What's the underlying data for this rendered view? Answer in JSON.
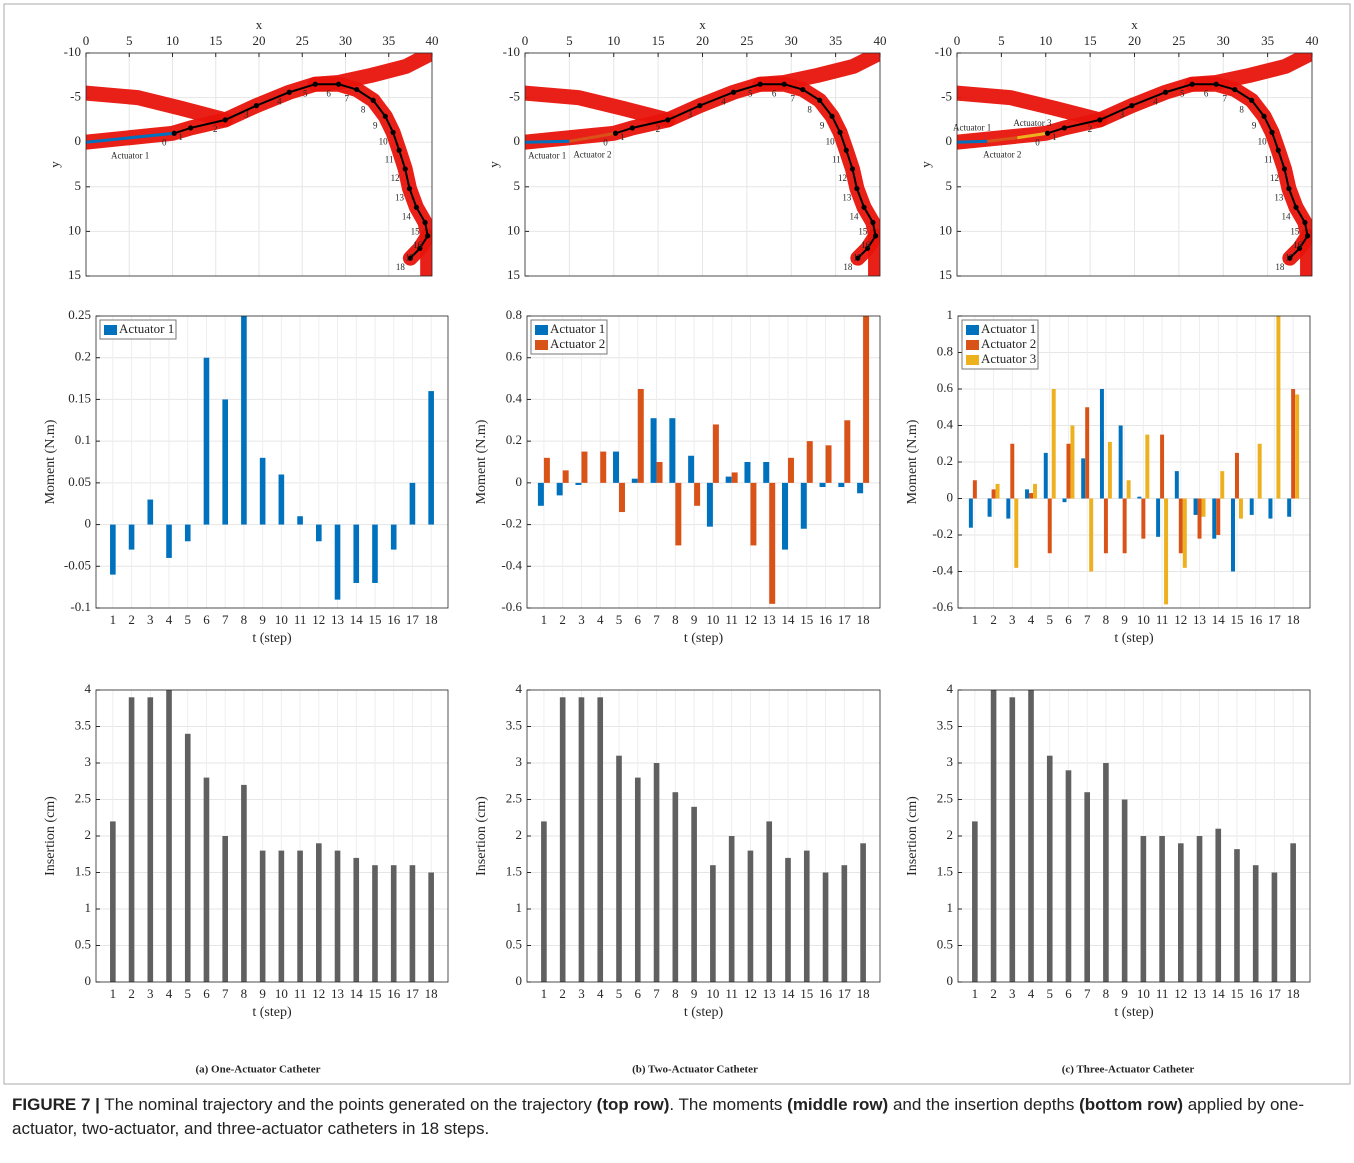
{
  "chart_data": [
    {
      "type": "trajectory",
      "xlabel": "x",
      "ylabel": "y",
      "xlim": [
        0,
        40
      ],
      "xticks": [
        0,
        5,
        10,
        15,
        20,
        25,
        30,
        35,
        40
      ],
      "ylim": [
        -10,
        15
      ],
      "yticks": [
        -10,
        -5,
        0,
        5,
        10,
        15
      ],
      "y_reversed": true,
      "grid": true,
      "vessel": {
        "color": "#e8140c",
        "paths": [
          {
            "x": [
              0,
              5,
              10,
              12.1,
              16.1,
              19.7,
              23.5,
              26.5,
              29.2,
              31.3,
              33.2,
              34.6,
              35.5,
              36.2,
              36.9,
              37.4,
              38.2,
              39.2,
              39.5,
              38.6,
              37.5
            ],
            "y": [
              0,
              -0.5,
              -1,
              -1.6,
              -2.5,
              -4.1,
              -5.6,
              -6.5,
              -6.5,
              -5.9,
              -4.7,
              -2.9,
              -1.1,
              0.9,
              3,
              5.2,
              7.3,
              9,
              10.5,
              11.9,
              13
            ]
          },
          {
            "x": [
              0,
              6,
              11,
              16.1
            ],
            "y": [
              -5.5,
              -5,
              -3.8,
              -2.5
            ]
          },
          {
            "x": [
              26.5,
              29.2,
              33,
              37,
              40
            ],
            "y": [
              -6.5,
              -6.7,
              -7.5,
              -8.5,
              -10
            ]
          },
          {
            "x": [
              39.5,
              39.5
            ],
            "y": [
              10.5,
              15
            ]
          }
        ]
      },
      "trajectory": {
        "color": "#000000",
        "labels": [
          0,
          1,
          2,
          3,
          4,
          5,
          6,
          7,
          8,
          9,
          10,
          11,
          12,
          13,
          14,
          15,
          16,
          17,
          18
        ],
        "x": [
          10.2,
          12.1,
          16.1,
          19.7,
          23.5,
          26.5,
          29.2,
          31.3,
          33.2,
          34.6,
          35.5,
          36.2,
          36.9,
          37.4,
          38.2,
          39.2,
          39.5,
          38.6,
          37.5
        ],
        "y": [
          -1,
          -1.6,
          -2.5,
          -4.1,
          -5.6,
          -6.5,
          -6.5,
          -5.9,
          -4.7,
          -2.9,
          -1.1,
          0.9,
          3,
          5.2,
          7.3,
          9,
          10.5,
          11.9,
          13
        ]
      },
      "series": [
        {
          "name": "Actuator 1",
          "color": "#0072bd",
          "x": [
            0,
            10.2
          ],
          "y": [
            0,
            -1
          ]
        }
      ]
    },
    {
      "type": "trajectory",
      "xlabel": "x",
      "ylabel": "y",
      "xlim": [
        0,
        40
      ],
      "xticks": [
        0,
        5,
        10,
        15,
        20,
        25,
        30,
        35,
        40
      ],
      "ylim": [
        -10,
        15
      ],
      "yticks": [
        -10,
        -5,
        0,
        5,
        10,
        15
      ],
      "y_reversed": true,
      "grid": true,
      "vessel": {
        "color": "#e8140c",
        "paths": [
          {
            "x": [
              0,
              5,
              10,
              12.1,
              16.1,
              19.7,
              23.5,
              26.5,
              29.2,
              31.3,
              33.2,
              34.6,
              35.5,
              36.2,
              36.9,
              37.4,
              38.2,
              39.2,
              39.5,
              38.6,
              37.5
            ],
            "y": [
              0,
              -0.5,
              -1,
              -1.6,
              -2.5,
              -4.1,
              -5.6,
              -6.5,
              -6.5,
              -5.9,
              -4.7,
              -2.9,
              -1.1,
              0.9,
              3,
              5.2,
              7.3,
              9,
              10.5,
              11.9,
              13
            ]
          },
          {
            "x": [
              0,
              6,
              11,
              16.1
            ],
            "y": [
              -5.5,
              -5,
              -3.8,
              -2.5
            ]
          },
          {
            "x": [
              26.5,
              29.2,
              33,
              37,
              40
            ],
            "y": [
              -6.5,
              -6.7,
              -7.5,
              -8.5,
              -10
            ]
          },
          {
            "x": [
              39.5,
              39.5
            ],
            "y": [
              10.5,
              15
            ]
          }
        ]
      },
      "trajectory": {
        "color": "#000000",
        "labels": [
          0,
          1,
          2,
          3,
          4,
          5,
          6,
          7,
          8,
          9,
          10,
          11,
          12,
          13,
          14,
          15,
          16,
          17,
          18
        ],
        "x": [
          10.2,
          12.1,
          16.1,
          19.7,
          23.5,
          26.5,
          29.2,
          31.3,
          33.2,
          34.6,
          35.5,
          36.2,
          36.9,
          37.4,
          38.2,
          39.2,
          39.5,
          38.6,
          37.5
        ],
        "y": [
          -1,
          -1.6,
          -2.5,
          -4.1,
          -5.6,
          -6.5,
          -6.5,
          -5.9,
          -4.7,
          -2.9,
          -1.1,
          0.9,
          3,
          5.2,
          7.3,
          9,
          10.5,
          11.9,
          13
        ]
      },
      "series": [
        {
          "name": "Actuator 1",
          "color": "#0072bd",
          "x": [
            0,
            5
          ],
          "y": [
            0,
            -0.1
          ]
        },
        {
          "name": "Actuator 2",
          "color": "#d95319",
          "x": [
            5,
            10.2
          ],
          "y": [
            -0.1,
            -1
          ]
        }
      ]
    },
    {
      "type": "trajectory",
      "xlabel": "x",
      "ylabel": "y",
      "xlim": [
        0,
        40
      ],
      "xticks": [
        0,
        5,
        10,
        15,
        20,
        25,
        30,
        35,
        40
      ],
      "ylim": [
        -10,
        15
      ],
      "yticks": [
        -10,
        -5,
        0,
        5,
        10,
        15
      ],
      "y_reversed": true,
      "grid": true,
      "vessel": {
        "color": "#e8140c",
        "paths": [
          {
            "x": [
              0,
              5,
              10,
              12.1,
              16.1,
              19.7,
              23.5,
              26.5,
              29.2,
              31.3,
              33.2,
              34.6,
              35.5,
              36.2,
              36.9,
              37.4,
              38.2,
              39.2,
              39.5,
              38.6,
              37.5
            ],
            "y": [
              0,
              -0.5,
              -1,
              -1.6,
              -2.5,
              -4.1,
              -5.6,
              -6.5,
              -6.5,
              -5.9,
              -4.7,
              -2.9,
              -1.1,
              0.9,
              3,
              5.2,
              7.3,
              9,
              10.5,
              11.9,
              13
            ]
          },
          {
            "x": [
              0,
              6,
              11,
              16.1
            ],
            "y": [
              -5.5,
              -5,
              -3.8,
              -2.5
            ]
          },
          {
            "x": [
              26.5,
              29.2,
              33,
              37,
              40
            ],
            "y": [
              -6.5,
              -6.7,
              -7.5,
              -8.5,
              -10
            ]
          },
          {
            "x": [
              39.5,
              39.5
            ],
            "y": [
              10.5,
              15
            ]
          }
        ]
      },
      "trajectory": {
        "color": "#000000",
        "labels": [
          0,
          1,
          2,
          3,
          4,
          5,
          6,
          7,
          8,
          9,
          10,
          11,
          12,
          13,
          14,
          15,
          16,
          17,
          18
        ],
        "x": [
          10.2,
          12.1,
          16.1,
          19.7,
          23.5,
          26.5,
          29.2,
          31.3,
          33.2,
          34.6,
          35.5,
          36.2,
          36.9,
          37.4,
          38.2,
          39.2,
          39.5,
          38.6,
          37.5
        ],
        "y": [
          -1,
          -1.6,
          -2.5,
          -4.1,
          -5.6,
          -6.5,
          -6.5,
          -5.9,
          -4.7,
          -2.9,
          -1.1,
          0.9,
          3,
          5.2,
          7.3,
          9,
          10.5,
          11.9,
          13
        ]
      },
      "series": [
        {
          "name": "Actuator 1",
          "color": "#0072bd",
          "x": [
            0,
            3.4
          ],
          "y": [
            0,
            -0.1
          ]
        },
        {
          "name": "Actuator 2",
          "color": "#d95319",
          "x": [
            3.4,
            6.8
          ],
          "y": [
            -0.1,
            -0.5
          ]
        },
        {
          "name": "Actuator 3",
          "color": "#edb120",
          "x": [
            6.8,
            10.2
          ],
          "y": [
            -0.5,
            -1
          ]
        }
      ]
    },
    {
      "type": "bar",
      "xlabel": "t (step)",
      "ylabel": "Moment (N.m)",
      "legend": "upper-left",
      "grid": true,
      "categories": [
        1,
        2,
        3,
        4,
        5,
        6,
        7,
        8,
        9,
        10,
        11,
        12,
        13,
        14,
        15,
        16,
        17,
        18
      ],
      "ylim": [
        -0.1,
        0.25
      ],
      "yticks": [
        -0.1,
        -0.05,
        0,
        0.05,
        0.1,
        0.15,
        0.2,
        0.25
      ],
      "series": [
        {
          "name": "Actuator 1",
          "color": "#0072bd",
          "values": [
            -0.06,
            -0.03,
            0.03,
            -0.04,
            -0.02,
            0.2,
            0.15,
            0.25,
            0.08,
            0.06,
            0.01,
            -0.02,
            -0.09,
            -0.07,
            -0.07,
            -0.03,
            0.05,
            0.16
          ]
        }
      ]
    },
    {
      "type": "bar",
      "xlabel": "t (step)",
      "ylabel": "Moment (N.m)",
      "legend": "upper-left",
      "grid": true,
      "categories": [
        1,
        2,
        3,
        4,
        5,
        6,
        7,
        8,
        9,
        10,
        11,
        12,
        13,
        14,
        15,
        16,
        17,
        18
      ],
      "ylim": [
        -0.6,
        0.8
      ],
      "yticks": [
        -0.6,
        -0.4,
        -0.2,
        0,
        0.2,
        0.4,
        0.6,
        0.8
      ],
      "series": [
        {
          "name": "Actuator 1",
          "color": "#0072bd",
          "values": [
            -0.11,
            -0.06,
            -0.01,
            0,
            0.15,
            0.02,
            0.31,
            0.31,
            0.13,
            -0.21,
            0.03,
            0.1,
            0.1,
            -0.32,
            -0.22,
            -0.02,
            -0.02,
            -0.05
          ]
        },
        {
          "name": "Actuator 2",
          "color": "#d95319",
          "values": [
            0.12,
            0.06,
            0.15,
            0.15,
            -0.14,
            0.45,
            0.1,
            -0.3,
            -0.11,
            0.28,
            0.05,
            -0.3,
            -0.58,
            0.12,
            0.2,
            0.18,
            0.3,
            0.8
          ]
        }
      ]
    },
    {
      "type": "bar",
      "xlabel": "t (step)",
      "ylabel": "Moment (N.m)",
      "legend": "upper-left",
      "grid": true,
      "categories": [
        1,
        2,
        3,
        4,
        5,
        6,
        7,
        8,
        9,
        10,
        11,
        12,
        13,
        14,
        15,
        16,
        17,
        18
      ],
      "ylim": [
        -0.6,
        1
      ],
      "yticks": [
        -0.6,
        -0.4,
        -0.2,
        0,
        0.2,
        0.4,
        0.6,
        0.8,
        1
      ],
      "series": [
        {
          "name": "Actuator 1",
          "color": "#0072bd",
          "values": [
            -0.16,
            -0.1,
            -0.11,
            0.05,
            0.25,
            -0.02,
            0.22,
            0.6,
            0.4,
            0.01,
            -0.21,
            0.15,
            -0.09,
            -0.22,
            -0.4,
            -0.09,
            -0.11,
            -0.1
          ]
        },
        {
          "name": "Actuator 2",
          "color": "#d95319",
          "values": [
            0.1,
            0.05,
            0.3,
            0.03,
            -0.3,
            0.3,
            0.5,
            -0.3,
            -0.3,
            -0.22,
            0.35,
            -0.3,
            -0.22,
            -0.2,
            0.25,
            0,
            0,
            0.6
          ]
        },
        {
          "name": "Actuator 3",
          "color": "#edb120",
          "values": [
            0,
            0.08,
            -0.38,
            0.08,
            0.6,
            0.4,
            -0.4,
            0.31,
            0.1,
            0.35,
            -0.58,
            -0.38,
            -0.1,
            0.15,
            -0.11,
            0.3,
            1,
            0.57
          ]
        }
      ]
    },
    {
      "type": "bar",
      "xlabel": "t (step)",
      "ylabel": "Insertion (cm)",
      "grid": true,
      "categories": [
        1,
        2,
        3,
        4,
        5,
        6,
        7,
        8,
        9,
        10,
        11,
        12,
        13,
        14,
        15,
        16,
        17,
        18
      ],
      "ylim": [
        0,
        4
      ],
      "yticks": [
        0,
        0.5,
        1,
        1.5,
        2,
        2.5,
        3,
        3.5,
        4
      ],
      "series": [
        {
          "color": "#606060",
          "values": [
            2.2,
            3.9,
            3.9,
            4,
            3.4,
            2.8,
            2,
            2.7,
            1.8,
            1.8,
            1.8,
            1.9,
            1.8,
            1.7,
            1.6,
            1.6,
            1.6,
            1.5
          ]
        }
      ]
    },
    {
      "type": "bar",
      "xlabel": "t (step)",
      "ylabel": "Insertion (cm)",
      "grid": true,
      "categories": [
        1,
        2,
        3,
        4,
        5,
        6,
        7,
        8,
        9,
        10,
        11,
        12,
        13,
        14,
        15,
        16,
        17,
        18
      ],
      "ylim": [
        0,
        4
      ],
      "yticks": [
        0,
        0.5,
        1,
        1.5,
        2,
        2.5,
        3,
        3.5,
        4
      ],
      "series": [
        {
          "color": "#606060",
          "values": [
            2.2,
            3.9,
            3.9,
            3.9,
            3.1,
            2.8,
            3,
            2.6,
            2.4,
            1.6,
            2,
            1.8,
            2.2,
            1.7,
            1.8,
            1.5,
            1.6,
            1.9
          ]
        }
      ]
    },
    {
      "type": "bar",
      "xlabel": "t (step)",
      "ylabel": "Insertion (cm)",
      "grid": true,
      "categories": [
        1,
        2,
        3,
        4,
        5,
        6,
        7,
        8,
        9,
        10,
        11,
        12,
        13,
        14,
        15,
        16,
        17,
        18
      ],
      "ylim": [
        0,
        4
      ],
      "yticks": [
        0,
        0.5,
        1,
        1.5,
        2,
        2.5,
        3,
        3.5,
        4
      ],
      "series": [
        {
          "color": "#606060",
          "values": [
            2.2,
            4,
            3.9,
            4,
            3.1,
            2.9,
            2.6,
            3,
            2.5,
            2,
            2,
            1.9,
            2,
            2.1,
            1.82,
            1.6,
            1.5,
            1.9
          ]
        }
      ]
    }
  ],
  "figure": {
    "panel_labels": [
      "(a) One-Actuator Catheter",
      "(b) Two-Actuator Catheter",
      "(c) Three-Actuator Catheter"
    ],
    "caption": [
      {
        "text": "FIGURE 7 |",
        "bold": true
      },
      {
        "text": " The nominal trajectory and the points generated on the trajectory ",
        "bold": false
      },
      {
        "text": "(top row)",
        "bold": true
      },
      {
        "text": ". The moments ",
        "bold": false
      },
      {
        "text": "(middle row)",
        "bold": true
      },
      {
        "text": " and the insertion depths ",
        "bold": false
      },
      {
        "text": "(bottom row)",
        "bold": true
      },
      {
        "text": " applied by one-actuator, two-actuator, and three-actuator catheters in 18 steps.",
        "bold": false
      }
    ]
  }
}
